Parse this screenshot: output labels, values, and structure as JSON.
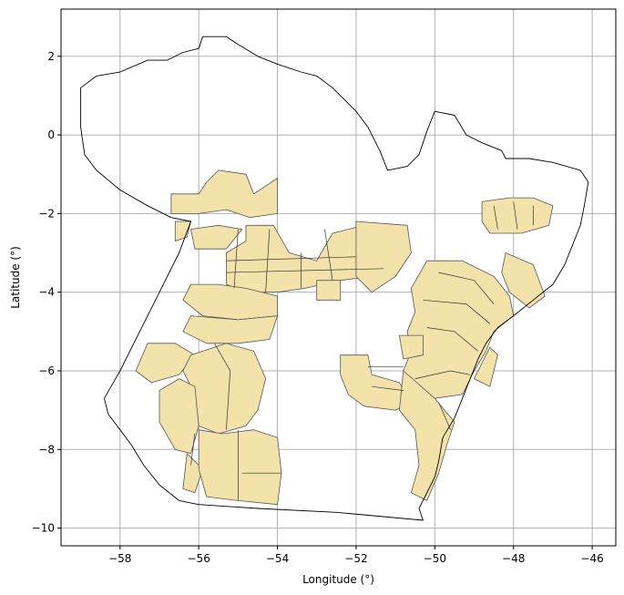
{
  "chart_data": {
    "type": "map",
    "xlabel": "Longitude (°)",
    "ylabel": "Latitude (°)",
    "xlim": [
      -59.5,
      -45.4
    ],
    "ylim": [
      -10.45,
      3.2
    ],
    "xticks": [
      -58,
      -56,
      -54,
      -52,
      -50,
      -48,
      -46
    ],
    "yticks": [
      -10,
      -8,
      -6,
      -4,
      -2,
      0,
      2
    ],
    "xtick_labels": [
      "−58",
      "−56",
      "−54",
      "−52",
      "−50",
      "−48",
      "−46"
    ],
    "ytick_labels": [
      "−10",
      "−8",
      "−6",
      "−4",
      "−2",
      "0",
      "2"
    ],
    "grid": true,
    "colors": {
      "region_fill": "#f3e2a9",
      "region_edge": "#555555",
      "boundary": "#000000",
      "grid": "#b0b0b0"
    },
    "boundary": [
      [
        -59.0,
        1.2
      ],
      [
        -58.6,
        1.5
      ],
      [
        -58.0,
        1.6
      ],
      [
        -57.3,
        1.9
      ],
      [
        -56.8,
        1.9
      ],
      [
        -56.4,
        2.1
      ],
      [
        -56.0,
        2.2
      ],
      [
        -55.9,
        2.5
      ],
      [
        -55.3,
        2.5
      ],
      [
        -55.0,
        2.3
      ],
      [
        -54.5,
        2.0
      ],
      [
        -54.0,
        1.8
      ],
      [
        -53.4,
        1.6
      ],
      [
        -53.0,
        1.5
      ],
      [
        -52.6,
        1.2
      ],
      [
        -52.3,
        0.9
      ],
      [
        -52.0,
        0.6
      ],
      [
        -51.7,
        0.2
      ],
      [
        -51.4,
        -0.4
      ],
      [
        -51.2,
        -0.9
      ],
      [
        -50.7,
        -0.8
      ],
      [
        -50.4,
        -0.5
      ],
      [
        -50.2,
        0.1
      ],
      [
        -50.0,
        0.6
      ],
      [
        -49.5,
        0.5
      ],
      [
        -49.2,
        0.0
      ],
      [
        -48.8,
        -0.2
      ],
      [
        -48.3,
        -0.4
      ],
      [
        -48.2,
        -0.6
      ],
      [
        -47.6,
        -0.6
      ],
      [
        -47.0,
        -0.7
      ],
      [
        -46.3,
        -0.9
      ],
      [
        -46.1,
        -1.2
      ],
      [
        -46.2,
        -1.8
      ],
      [
        -46.3,
        -2.3
      ],
      [
        -46.5,
        -2.8
      ],
      [
        -46.7,
        -3.3
      ],
      [
        -47.0,
        -3.8
      ],
      [
        -47.5,
        -4.2
      ],
      [
        -48.0,
        -4.6
      ],
      [
        -48.4,
        -4.9
      ],
      [
        -48.7,
        -5.3
      ],
      [
        -48.9,
        -5.7
      ],
      [
        -49.1,
        -6.2
      ],
      [
        -49.3,
        -6.7
      ],
      [
        -49.5,
        -7.2
      ],
      [
        -49.8,
        -7.7
      ],
      [
        -49.9,
        -8.3
      ],
      [
        -50.0,
        -8.7
      ],
      [
        -50.2,
        -9.1
      ],
      [
        -50.4,
        -9.5
      ],
      [
        -50.3,
        -9.8
      ],
      [
        -52.5,
        -9.6
      ],
      [
        -54.5,
        -9.5
      ],
      [
        -56.0,
        -9.4
      ],
      [
        -56.5,
        -9.3
      ],
      [
        -57.0,
        -8.9
      ],
      [
        -57.4,
        -8.4
      ],
      [
        -57.7,
        -7.9
      ],
      [
        -58.0,
        -7.5
      ],
      [
        -58.3,
        -7.1
      ],
      [
        -58.4,
        -6.7
      ],
      [
        -58.0,
        -6.0
      ],
      [
        -57.5,
        -5.0
      ],
      [
        -57.0,
        -4.0
      ],
      [
        -56.5,
        -3.0
      ],
      [
        -56.2,
        -2.2
      ],
      [
        -56.7,
        -2.1
      ],
      [
        -57.3,
        -1.8
      ],
      [
        -58.0,
        -1.4
      ],
      [
        -58.6,
        -0.9
      ],
      [
        -58.9,
        -0.5
      ],
      [
        -59.0,
        0.2
      ],
      [
        -59.0,
        1.2
      ]
    ],
    "regions": [
      [
        [
          -56.7,
          -1.5
        ],
        [
          -56.0,
          -1.5
        ],
        [
          -55.8,
          -1.2
        ],
        [
          -55.5,
          -0.9
        ],
        [
          -54.8,
          -1.0
        ],
        [
          -54.6,
          -1.5
        ],
        [
          -54.0,
          -1.1
        ],
        [
          -54.0,
          -2.0
        ],
        [
          -54.7,
          -2.1
        ],
        [
          -55.3,
          -1.9
        ],
        [
          -56.0,
          -2.0
        ],
        [
          -56.7,
          -2.0
        ]
      ],
      [
        [
          -56.6,
          -2.2
        ],
        [
          -56.2,
          -2.2
        ],
        [
          -56.3,
          -2.6
        ],
        [
          -56.6,
          -2.7
        ]
      ],
      [
        [
          -56.2,
          -2.4
        ],
        [
          -55.5,
          -2.3
        ],
        [
          -54.9,
          -2.4
        ],
        [
          -55.3,
          -2.9
        ],
        [
          -56.1,
          -2.9
        ]
      ],
      [
        [
          -54.8,
          -2.3
        ],
        [
          -54.1,
          -2.3
        ],
        [
          -53.7,
          -3.0
        ],
        [
          -53.0,
          -3.2
        ],
        [
          -52.6,
          -2.5
        ],
        [
          -51.8,
          -2.3
        ],
        [
          -51.3,
          -2.6
        ],
        [
          -51.0,
          -3.3
        ],
        [
          -51.6,
          -3.6
        ],
        [
          -52.4,
          -3.7
        ],
        [
          -53.3,
          -3.9
        ],
        [
          -54.0,
          -4.0
        ],
        [
          -54.8,
          -4.0
        ],
        [
          -55.3,
          -3.8
        ],
        [
          -55.3,
          -3.0
        ],
        [
          -54.8,
          -2.7
        ]
      ],
      [
        [
          -52.0,
          -2.2
        ],
        [
          -50.7,
          -2.3
        ],
        [
          -50.6,
          -3.0
        ],
        [
          -51.0,
          -3.6
        ],
        [
          -51.6,
          -4.0
        ],
        [
          -52.0,
          -3.6
        ]
      ],
      [
        [
          -53.0,
          -3.7
        ],
        [
          -52.4,
          -3.7
        ],
        [
          -52.4,
          -4.2
        ],
        [
          -53.0,
          -4.2
        ]
      ],
      [
        [
          -56.2,
          -3.8
        ],
        [
          -55.5,
          -3.8
        ],
        [
          -54.8,
          -3.9
        ],
        [
          -54.0,
          -4.1
        ],
        [
          -54.0,
          -4.6
        ],
        [
          -55.0,
          -4.7
        ],
        [
          -55.9,
          -4.6
        ],
        [
          -56.4,
          -4.2
        ]
      ],
      [
        [
          -56.2,
          -4.6
        ],
        [
          -55.0,
          -4.7
        ],
        [
          -54.0,
          -4.6
        ],
        [
          -54.2,
          -5.2
        ],
        [
          -55.0,
          -5.3
        ],
        [
          -55.8,
          -5.3
        ],
        [
          -56.4,
          -5.0
        ]
      ],
      [
        [
          -57.3,
          -5.3
        ],
        [
          -56.6,
          -5.3
        ],
        [
          -56.1,
          -5.6
        ],
        [
          -56.5,
          -6.1
        ],
        [
          -57.2,
          -6.3
        ],
        [
          -57.6,
          -6.0
        ]
      ],
      [
        [
          -56.2,
          -5.6
        ],
        [
          -55.3,
          -5.3
        ],
        [
          -54.6,
          -5.5
        ],
        [
          -54.3,
          -6.2
        ],
        [
          -54.5,
          -7.0
        ],
        [
          -54.8,
          -7.4
        ],
        [
          -55.5,
          -7.6
        ],
        [
          -56.0,
          -7.4
        ],
        [
          -56.1,
          -6.6
        ],
        [
          -56.4,
          -6.0
        ]
      ],
      [
        [
          -56.5,
          -6.2
        ],
        [
          -56.1,
          -6.4
        ],
        [
          -56.0,
          -7.4
        ],
        [
          -56.2,
          -8.1
        ],
        [
          -56.6,
          -8.0
        ],
        [
          -57.0,
          -7.3
        ],
        [
          -57.0,
          -6.5
        ]
      ],
      [
        [
          -56.3,
          -8.1
        ],
        [
          -55.9,
          -8.5
        ],
        [
          -56.1,
          -9.1
        ],
        [
          -56.4,
          -9.0
        ]
      ],
      [
        [
          -56.0,
          -7.5
        ],
        [
          -55.4,
          -7.6
        ],
        [
          -54.6,
          -7.5
        ],
        [
          -54.0,
          -7.7
        ],
        [
          -53.9,
          -8.6
        ],
        [
          -54.0,
          -9.4
        ],
        [
          -55.0,
          -9.3
        ],
        [
          -55.8,
          -9.2
        ],
        [
          -56.0,
          -8.5
        ]
      ],
      [
        [
          -52.4,
          -5.6
        ],
        [
          -51.7,
          -5.6
        ],
        [
          -51.6,
          -6.1
        ],
        [
          -50.9,
          -6.3
        ],
        [
          -50.6,
          -6.8
        ],
        [
          -51.0,
          -7.0
        ],
        [
          -51.8,
          -6.9
        ],
        [
          -52.2,
          -6.6
        ],
        [
          -52.4,
          -6.1
        ]
      ],
      [
        [
          -50.2,
          -3.2
        ],
        [
          -49.3,
          -3.2
        ],
        [
          -48.5,
          -3.6
        ],
        [
          -48.1,
          -4.1
        ],
        [
          -48.0,
          -4.6
        ],
        [
          -48.5,
          -5.0
        ],
        [
          -48.7,
          -5.5
        ],
        [
          -49.0,
          -6.0
        ],
        [
          -49.3,
          -6.6
        ],
        [
          -50.0,
          -6.7
        ],
        [
          -50.7,
          -6.6
        ],
        [
          -50.8,
          -6.0
        ],
        [
          -50.6,
          -5.5
        ],
        [
          -50.7,
          -5.0
        ],
        [
          -50.5,
          -4.5
        ],
        [
          -50.6,
          -3.9
        ]
      ],
      [
        [
          -50.9,
          -5.1
        ],
        [
          -50.3,
          -5.1
        ],
        [
          -50.3,
          -5.6
        ],
        [
          -50.8,
          -5.7
        ]
      ],
      [
        [
          -50.8,
          -6.0
        ],
        [
          -50.0,
          -6.7
        ],
        [
          -49.5,
          -7.3
        ],
        [
          -49.7,
          -7.9
        ],
        [
          -49.9,
          -8.6
        ],
        [
          -50.2,
          -9.3
        ],
        [
          -50.6,
          -9.1
        ],
        [
          -50.4,
          -8.4
        ],
        [
          -50.5,
          -7.5
        ],
        [
          -50.9,
          -7.0
        ]
      ],
      [
        [
          -48.8,
          -1.7
        ],
        [
          -48.1,
          -1.6
        ],
        [
          -47.5,
          -1.6
        ],
        [
          -47.0,
          -1.8
        ],
        [
          -47.1,
          -2.3
        ],
        [
          -47.8,
          -2.5
        ],
        [
          -48.6,
          -2.5
        ],
        [
          -48.8,
          -2.2
        ]
      ],
      [
        [
          -48.2,
          -3.0
        ],
        [
          -47.5,
          -3.3
        ],
        [
          -47.2,
          -4.1
        ],
        [
          -47.6,
          -4.4
        ],
        [
          -48.1,
          -4.0
        ],
        [
          -48.3,
          -3.5
        ]
      ],
      [
        [
          -49.0,
          -6.2
        ],
        [
          -48.6,
          -5.4
        ],
        [
          -48.4,
          -5.6
        ],
        [
          -48.6,
          -6.4
        ]
      ]
    ],
    "internal_lines": [
      [
        [
          -55.0,
          -2.4
        ],
        [
          -55.1,
          -3.9
        ]
      ],
      [
        [
          -54.2,
          -2.4
        ],
        [
          -54.3,
          -4.0
        ]
      ],
      [
        [
          -53.4,
          -3.0
        ],
        [
          -53.4,
          -3.9
        ]
      ],
      [
        [
          -52.8,
          -2.4
        ],
        [
          -52.6,
          -3.7
        ]
      ],
      [
        [
          -55.3,
          -3.2
        ],
        [
          -52.0,
          -3.1
        ]
      ],
      [
        [
          -55.3,
          -3.5
        ],
        [
          -51.3,
          -3.4
        ]
      ],
      [
        [
          -55.6,
          -5.3
        ],
        [
          -55.2,
          -6.0
        ],
        [
          -55.3,
          -7.5
        ]
      ],
      [
        [
          -55.0,
          -7.5
        ],
        [
          -55.0,
          -9.3
        ]
      ],
      [
        [
          -54.9,
          -8.6
        ],
        [
          -53.9,
          -8.6
        ]
      ],
      [
        [
          -56.1,
          -7.6
        ],
        [
          -56.2,
          -8.4
        ]
      ],
      [
        [
          -51.7,
          -5.9
        ],
        [
          -50.8,
          -5.9
        ]
      ],
      [
        [
          -51.6,
          -6.4
        ],
        [
          -50.8,
          -6.5
        ]
      ],
      [
        [
          -49.9,
          -3.5
        ],
        [
          -49.0,
          -3.7
        ],
        [
          -48.5,
          -4.3
        ]
      ],
      [
        [
          -50.3,
          -4.2
        ],
        [
          -49.2,
          -4.3
        ],
        [
          -48.6,
          -4.8
        ]
      ],
      [
        [
          -50.2,
          -4.9
        ],
        [
          -49.5,
          -5.0
        ],
        [
          -48.9,
          -5.5
        ]
      ],
      [
        [
          -50.5,
          -6.2
        ],
        [
          -49.6,
          -6.0
        ],
        [
          -49.1,
          -6.1
        ]
      ],
      [
        [
          -49.9,
          -6.8
        ],
        [
          -49.6,
          -7.5
        ]
      ],
      [
        [
          -48.5,
          -1.8
        ],
        [
          -48.4,
          -2.4
        ]
      ],
      [
        [
          -48.0,
          -1.7
        ],
        [
          -47.9,
          -2.4
        ]
      ],
      [
        [
          -47.5,
          -1.8
        ],
        [
          -47.5,
          -2.3
        ]
      ]
    ]
  }
}
